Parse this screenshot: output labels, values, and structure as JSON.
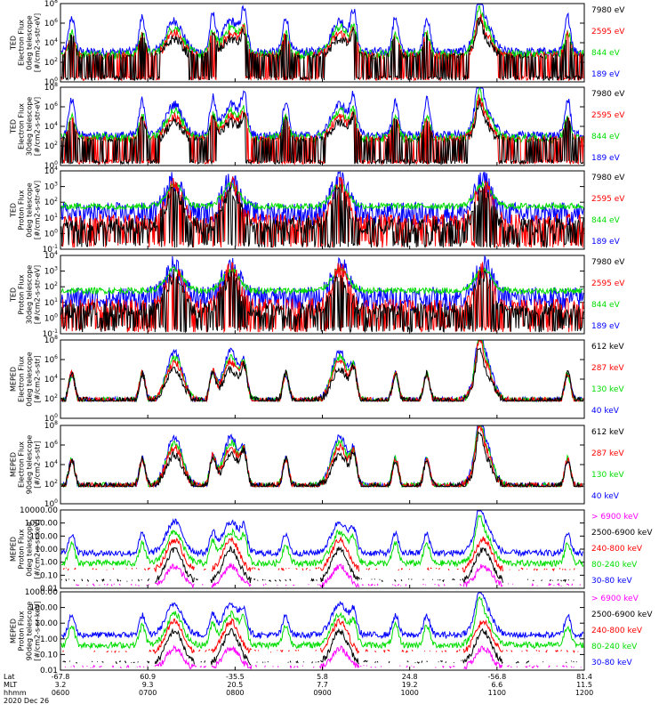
{
  "figure": {
    "colors": {
      "blue": "#0000ff",
      "red": "#ff0000",
      "green": "#00dd00",
      "black": "#000000",
      "magenta": "#ff00ff"
    }
  },
  "chart_data": [
    {
      "type": "line",
      "panel": "ted-electron-0deg",
      "ylabel_lines": [
        "TED",
        "Electron Flux",
        "0deg telescope",
        "[#/cm2-s-str-eV]"
      ],
      "yscale": "log",
      "ylim": [
        1,
        100000000
      ],
      "ytick_labels": [
        "10^0",
        "10^2",
        "10^4",
        "10^6",
        "10^8"
      ],
      "legend": [
        {
          "label": "7980 eV",
          "color": "#000000"
        },
        {
          "label": "2595 eV",
          "color": "#ff0000"
        },
        {
          "label": "844 eV",
          "color": "#00dd00"
        },
        {
          "label": "189 eV",
          "color": "#0000ff"
        }
      ],
      "series_shape": "background_bursts"
    },
    {
      "type": "line",
      "panel": "ted-electron-30deg",
      "ylabel_lines": [
        "TED",
        "Electron Flux",
        "30deg telescope",
        "[#/cm2-s-str-eV]"
      ],
      "yscale": "log",
      "ylim": [
        1,
        100000000
      ],
      "ytick_labels": [
        "10^0",
        "10^2",
        "10^4",
        "10^6",
        "10^8"
      ],
      "legend": [
        {
          "label": "7980 eV",
          "color": "#000000"
        },
        {
          "label": "2595 eV",
          "color": "#ff0000"
        },
        {
          "label": "844 eV",
          "color": "#00dd00"
        },
        {
          "label": "189 eV",
          "color": "#0000ff"
        }
      ],
      "series_shape": "background_bursts"
    },
    {
      "type": "line",
      "panel": "ted-proton-0deg",
      "ylabel_lines": [
        "TED",
        "Proton Flux",
        "0deg telescope",
        "[#/cm2-s-str-eV]"
      ],
      "yscale": "log",
      "ylim": [
        0.1,
        10000
      ],
      "ytick_labels": [
        "10^-1",
        "10^0",
        "10^1",
        "10^2",
        "10^3",
        "10^4"
      ],
      "legend": [
        {
          "label": "7980 eV",
          "color": "#000000"
        },
        {
          "label": "2595 eV",
          "color": "#ff0000"
        },
        {
          "label": "844 eV",
          "color": "#00dd00"
        },
        {
          "label": "189 eV",
          "color": "#0000ff"
        }
      ],
      "series_shape": "proton"
    },
    {
      "type": "line",
      "panel": "ted-proton-30deg",
      "ylabel_lines": [
        "TED",
        "Proton Flux",
        "30deg telescope",
        "[#/cm2-s-str-eV]"
      ],
      "yscale": "log",
      "ylim": [
        0.1,
        10000
      ],
      "ytick_labels": [
        "10^-1",
        "10^0",
        "10^1",
        "10^2",
        "10^3",
        "10^4"
      ],
      "legend": [
        {
          "label": "7980 eV",
          "color": "#000000"
        },
        {
          "label": "2595 eV",
          "color": "#ff0000"
        },
        {
          "label": "844 eV",
          "color": "#00dd00"
        },
        {
          "label": "189 eV",
          "color": "#0000ff"
        }
      ],
      "series_shape": "proton"
    },
    {
      "type": "line",
      "panel": "mepedelectron-0deg",
      "ylabel_lines": [
        "MEPED",
        "Electron Flux",
        "0deg telescope",
        "[#/cm2-s-str]"
      ],
      "yscale": "log",
      "ylim": [
        1,
        100000000
      ],
      "ytick_labels": [
        "10^0",
        "10^2",
        "10^4",
        "10^6",
        "10^8"
      ],
      "legend": [
        {
          "label": "612 keV",
          "color": "#000000"
        },
        {
          "label": "287 keV",
          "color": "#ff0000"
        },
        {
          "label": "130 keV",
          "color": "#00dd00"
        },
        {
          "label": "40 keV",
          "color": "#0000ff"
        }
      ],
      "series_shape": "meped_floor"
    },
    {
      "type": "line",
      "panel": "meped-electron-90deg",
      "ylabel_lines": [
        "MEPED",
        "Electron Flux",
        "90deg telescope",
        "[#/cm2-s-str]"
      ],
      "yscale": "log",
      "ylim": [
        1,
        100000000
      ],
      "ytick_labels": [
        "10^0",
        "10^2",
        "10^4",
        "10^6",
        "10^8"
      ],
      "legend": [
        {
          "label": "612 keV",
          "color": "#000000"
        },
        {
          "label": "287 keV",
          "color": "#ff0000"
        },
        {
          "label": "130 keV",
          "color": "#00dd00"
        },
        {
          "label": "40 keV",
          "color": "#0000ff"
        }
      ],
      "series_shape": "meped_floor"
    },
    {
      "type": "line",
      "panel": "meped-proton-0deg",
      "ylabel_lines": [
        "MEPED",
        "Proton Flux",
        "0deg telescope",
        "[#/cm2-s-sr-keV]"
      ],
      "yscale": "log",
      "ylim": [
        0.01,
        10000
      ],
      "ytick_labels": [
        "0.01",
        "0.10",
        "1.00",
        "10.00",
        "100.00",
        "1000.00",
        "10000.00"
      ],
      "legend": [
        {
          "label": "> 6900 keV",
          "color": "#ff00ff"
        },
        {
          "label": "2500-6900 keV",
          "color": "#000000"
        },
        {
          "label": "240-800 keV",
          "color": "#ff0000"
        },
        {
          "label": "80-240 keV",
          "color": "#00dd00"
        },
        {
          "label": "30-80 keV",
          "color": "#0000ff"
        }
      ],
      "series_shape": "meped_proton"
    },
    {
      "type": "line",
      "panel": "meped-proton-90deg",
      "ylabel_lines": [
        "MEPED",
        "Proton Flux",
        "90deg telescope",
        "[#/cm2-s-sr-keV]"
      ],
      "yscale": "log",
      "ylim": [
        0.01,
        1000
      ],
      "ytick_labels": [
        "0.01",
        "0.10",
        "1.00",
        "10.00",
        "100.00",
        "1000.00"
      ],
      "legend": [
        {
          "label": "> 6900 keV",
          "color": "#ff00ff"
        },
        {
          "label": "2500-6900 keV",
          "color": "#000000"
        },
        {
          "label": "240-800 keV",
          "color": "#ff0000"
        },
        {
          "label": "80-240 keV",
          "color": "#00dd00"
        },
        {
          "label": "30-80 keV",
          "color": "#0000ff"
        }
      ],
      "series_shape": "meped_proton"
    }
  ],
  "x_axis": {
    "time_range": [
      "0600",
      "1200"
    ],
    "row_labels": [
      "Lat",
      "MLT",
      "hhmm"
    ],
    "ticks": [
      {
        "lat": "-67.8",
        "mlt": "3.2",
        "hhmm": "0600"
      },
      {
        "lat": "60.9",
        "mlt": "9.3",
        "hhmm": "0700"
      },
      {
        "lat": "-35.5",
        "mlt": "20.5",
        "hhmm": "0800"
      },
      {
        "lat": "5.8",
        "mlt": "7.7",
        "hhmm": "0900"
      },
      {
        "lat": "24.8",
        "mlt": "19.2",
        "hhmm": "1000"
      },
      {
        "lat": "-56.8",
        "mlt": "6.6",
        "hhmm": "1100"
      },
      {
        "lat": "81.4",
        "mlt": "11.5",
        "hhmm": "1200"
      }
    ],
    "date": "2020 Dec 26"
  },
  "passes": {
    "radiation_belt_crossings_hhmm": [
      "0718",
      "0757",
      "0912",
      "1051"
    ]
  }
}
